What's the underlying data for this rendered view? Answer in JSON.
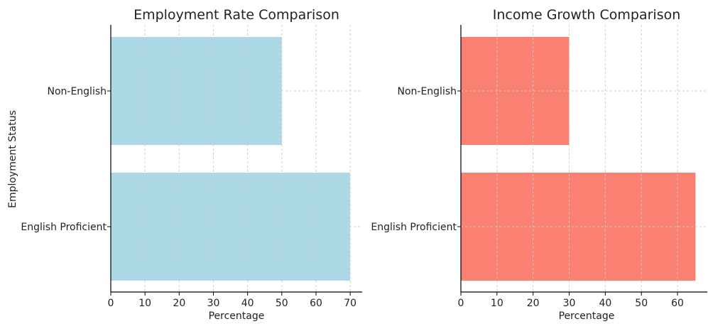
{
  "chart_data": [
    {
      "type": "bar",
      "orientation": "horizontal",
      "title": "Employment Rate Comparison",
      "xlabel": "Percentage",
      "ylabel": "Employment Status",
      "categories": [
        "English Proficient",
        "Non-English"
      ],
      "values": [
        70,
        50
      ],
      "xlim": [
        0,
        73.5
      ],
      "xticks": [
        0,
        10,
        20,
        30,
        40,
        50,
        60,
        70
      ],
      "color": "#add8e6",
      "grid": true
    },
    {
      "type": "bar",
      "orientation": "horizontal",
      "title": "Income Growth Comparison",
      "xlabel": "Percentage",
      "ylabel": "",
      "categories": [
        "English Proficient",
        "Non-English"
      ],
      "values": [
        65,
        30
      ],
      "xlim": [
        0,
        68.25
      ],
      "xticks": [
        0,
        10,
        20,
        30,
        40,
        50,
        60
      ],
      "color": "#fa8072",
      "grid": true
    }
  ]
}
